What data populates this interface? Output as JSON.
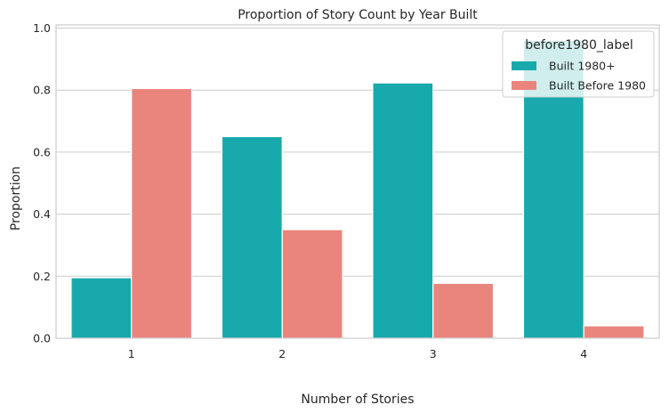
{
  "chart_data": {
    "type": "bar",
    "title": "Proportion of Story Count by Year Built",
    "xlabel": "Number of Stories",
    "ylabel": "Proportion",
    "categories": [
      "1",
      "2",
      "3",
      "4"
    ],
    "ylim": [
      0,
      1.01
    ],
    "yticks": [
      "0.0",
      "0.2",
      "0.4",
      "0.6",
      "0.8",
      "1.0"
    ],
    "grid": true,
    "legend": {
      "title": "before1980_label",
      "placement": "top-right"
    },
    "series": [
      {
        "name": "Built 1980+",
        "color": "#17a9ac",
        "values": [
          0.195,
          0.65,
          0.823,
          0.96
        ]
      },
      {
        "name": "Built Before 1980",
        "color": "#ea857e",
        "values": [
          0.805,
          0.35,
          0.177,
          0.04
        ]
      }
    ]
  }
}
